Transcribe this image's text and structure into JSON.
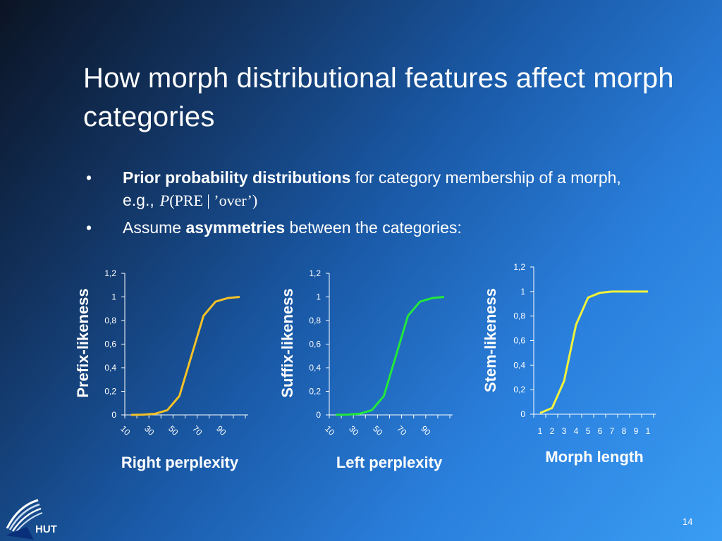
{
  "slide": {
    "title": "How morph distributional features affect morph categories",
    "bullets": [
      {
        "mark": "•",
        "bold": "Prior probability distributions",
        "text": " for category membership of a morph, e.g.,",
        "formula_var": "P",
        "formula_rest": "(PRE | ’over’)"
      },
      {
        "mark": "•",
        "prefix": "Assume ",
        "bold": "asymmetries",
        "text": " between the categories:"
      }
    ],
    "page_number": "14",
    "logo_text": "HUT"
  },
  "chart_data": [
    {
      "type": "line",
      "ylabel": "Prefix-likeness",
      "xlabel": "Right perplexity",
      "line_color": "#f5c226",
      "yticks": [
        "0",
        "0,2",
        "0,4",
        "0,6",
        "0,8",
        "1",
        "1,2"
      ],
      "ylim": [
        0,
        1.2
      ],
      "xticks": [
        "10",
        "30",
        "50",
        "70",
        "90"
      ],
      "x": [
        1,
        2,
        3,
        4,
        5,
        6,
        7,
        8,
        9,
        10
      ],
      "values": [
        0,
        0.002,
        0.01,
        0.04,
        0.16,
        0.5,
        0.84,
        0.96,
        0.99,
        1.0
      ]
    },
    {
      "type": "line",
      "ylabel": "Suffix-likeness",
      "xlabel": "Left perplexity",
      "line_color": "#22e83c",
      "yticks": [
        "0",
        "0,2",
        "0,4",
        "0,6",
        "0,8",
        "1",
        "1,2"
      ],
      "ylim": [
        0,
        1.2
      ],
      "xticks": [
        "10",
        "30",
        "50",
        "70",
        "90"
      ],
      "x": [
        1,
        2,
        3,
        4,
        5,
        6,
        7,
        8,
        9,
        10
      ],
      "values": [
        0,
        0.002,
        0.01,
        0.04,
        0.16,
        0.5,
        0.84,
        0.96,
        0.99,
        1.0
      ]
    },
    {
      "type": "line",
      "ylabel": "Stem-likeness",
      "xlabel": "Morph length",
      "line_color": "#f0f23c",
      "yticks": [
        "0",
        "0,2",
        "0,4",
        "0,6",
        "0,8",
        "1",
        "1,2"
      ],
      "ylim": [
        0,
        1.2
      ],
      "xticks": [
        "1",
        "2",
        "3",
        "4",
        "5",
        "6",
        "7",
        "8",
        "9",
        "1"
      ],
      "x": [
        1,
        2,
        3,
        4,
        5,
        6,
        7,
        8,
        9,
        10
      ],
      "values": [
        0.01,
        0.05,
        0.27,
        0.73,
        0.95,
        0.99,
        1.0,
        1.0,
        1.0,
        1.0
      ]
    }
  ]
}
